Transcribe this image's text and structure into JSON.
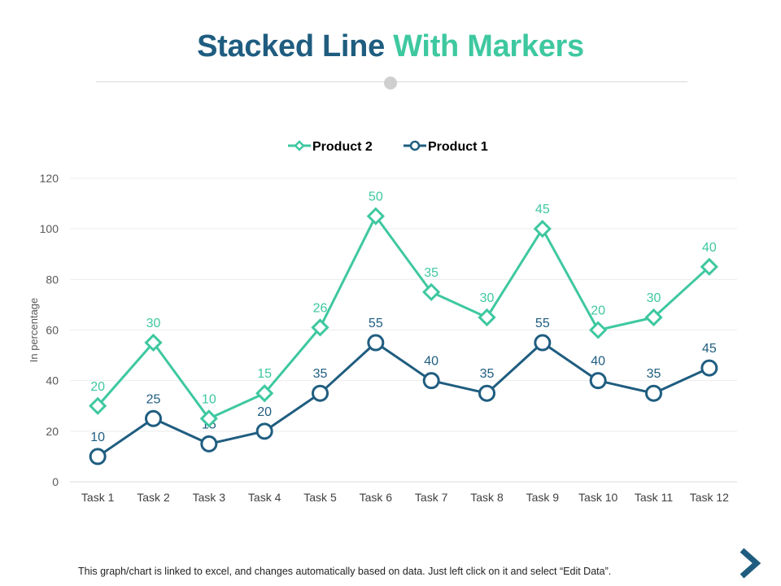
{
  "title": {
    "part1": "Stacked Line",
    "part2": "With Markers"
  },
  "footer": {
    "note": "This graph/chart is linked to excel, and changes automatically based on data. Just left click on it and select “Edit Data”."
  },
  "chart_data": {
    "type": "line",
    "stacked": true,
    "categories": [
      "Task 1",
      "Task 2",
      "Task 3",
      "Task 4",
      "Task 5",
      "Task 6",
      "Task 7",
      "Task 8",
      "Task 9",
      "Task 10",
      "Task 11",
      "Task 12"
    ],
    "series": [
      {
        "name": "Product 1",
        "values": [
          10,
          25,
          15,
          20,
          35,
          55,
          40,
          35,
          55,
          40,
          35,
          45
        ],
        "color": "#1f5d80",
        "marker": "circle"
      },
      {
        "name": "Product 2",
        "values": [
          20,
          30,
          10,
          15,
          26,
          50,
          35,
          30,
          45,
          20,
          30,
          40
        ],
        "color": "#3ec8a0",
        "marker": "diamond"
      }
    ],
    "legend_order": [
      "Product 2",
      "Product 1"
    ],
    "legend_placement": "top",
    "ylabel": "In percentage",
    "xlabel": "",
    "ylim": [
      0,
      120
    ],
    "yticks": [
      0,
      20,
      40,
      60,
      80,
      100,
      120
    ],
    "grid": true
  }
}
